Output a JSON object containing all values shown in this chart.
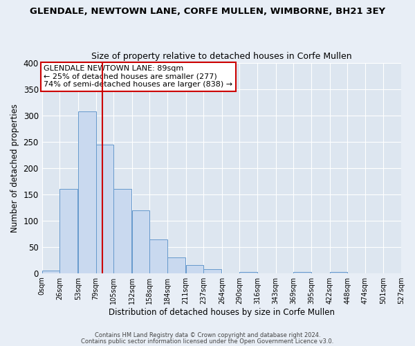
{
  "title": "GLENDALE, NEWTOWN LANE, CORFE MULLEN, WIMBORNE, BH21 3EY",
  "subtitle": "Size of property relative to detached houses in Corfe Mullen",
  "xlabel": "Distribution of detached houses by size in Corfe Mullen",
  "ylabel": "Number of detached properties",
  "bar_values": [
    5,
    160,
    308,
    245,
    160,
    120,
    64,
    30,
    15,
    8,
    0,
    2,
    0,
    0,
    2,
    0,
    2,
    0,
    0,
    0
  ],
  "bin_edges": [
    0,
    26,
    53,
    79,
    105,
    132,
    158,
    184,
    211,
    237,
    264,
    290,
    316,
    343,
    369,
    395,
    422,
    448,
    474,
    501,
    527
  ],
  "tick_labels": [
    "0sqm",
    "26sqm",
    "53sqm",
    "79sqm",
    "105sqm",
    "132sqm",
    "158sqm",
    "184sqm",
    "211sqm",
    "237sqm",
    "264sqm",
    "290sqm",
    "316sqm",
    "343sqm",
    "369sqm",
    "395sqm",
    "422sqm",
    "448sqm",
    "474sqm",
    "501sqm",
    "527sqm"
  ],
  "bar_color": "#c9d9ef",
  "bar_edgecolor": "#6699cc",
  "redline_x": 89,
  "ylim": [
    0,
    400
  ],
  "yticks": [
    0,
    50,
    100,
    150,
    200,
    250,
    300,
    350,
    400
  ],
  "annotation_title": "GLENDALE NEWTOWN LANE: 89sqm",
  "annotation_line1": "← 25% of detached houses are smaller (277)",
  "annotation_line2": "74% of semi-detached houses are larger (838) →",
  "annotation_box_facecolor": "#ffffff",
  "annotation_box_edgecolor": "#cc0000",
  "plot_bg_color": "#dde6f0",
  "fig_bg_color": "#e8eef6",
  "footer1": "Contains HM Land Registry data © Crown copyright and database right 2024.",
  "footer2": "Contains public sector information licensed under the Open Government Licence v3.0."
}
